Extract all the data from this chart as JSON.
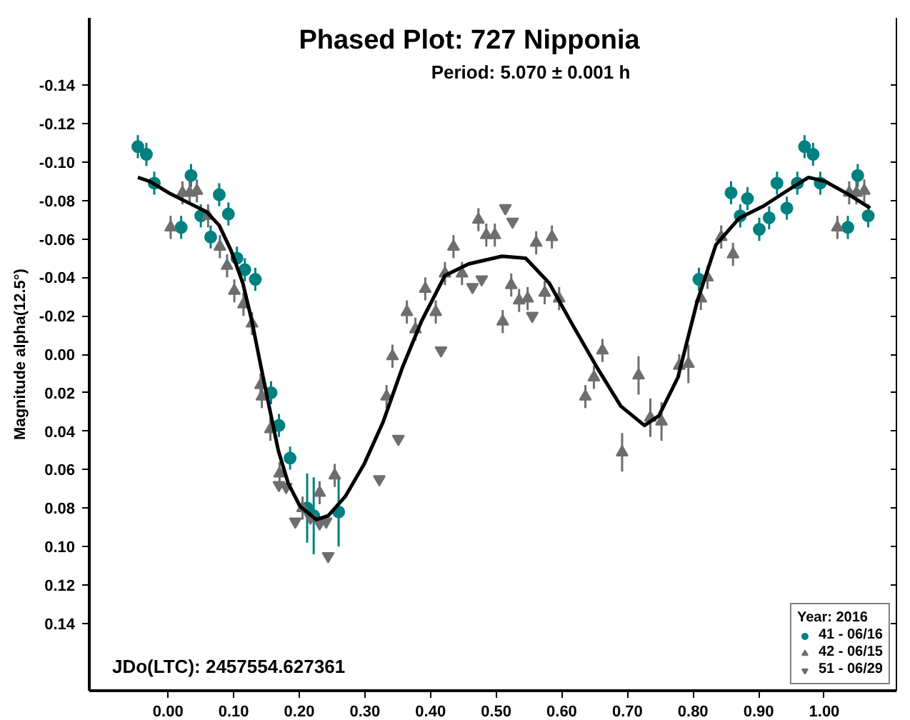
{
  "chart_data": {
    "type": "scatter",
    "title": "Phased Plot: 727 Nipponia",
    "xlabel": null,
    "ylabel": "Magnitude alpha(12.5°)",
    "legend_title": "Year: 2016",
    "annotations": [
      "Period: 5.070 ± 0.001 h",
      "JDo(LTC): 2457554.627361"
    ],
    "xlim": [
      -0.12,
      1.11
    ],
    "ylim": [
      0.175,
      -0.175
    ],
    "xticks": [
      {
        "value": 0,
        "label": "0.00"
      },
      {
        "value": 0.1,
        "label": "0.10"
      },
      {
        "value": 0.2,
        "label": "0.20"
      },
      {
        "value": 0.3,
        "label": "0.30"
      },
      {
        "value": 0.4,
        "label": "0.40"
      },
      {
        "value": 0.5,
        "label": "0.50"
      },
      {
        "value": 0.6,
        "label": "0.60"
      },
      {
        "value": 0.7,
        "label": "0.70"
      },
      {
        "value": 0.8,
        "label": "0.80"
      },
      {
        "value": 0.9,
        "label": "0.90"
      },
      {
        "value": 1.0,
        "label": "1.00"
      }
    ],
    "yticks": [
      {
        "value": -0.14,
        "label": "-0.14"
      },
      {
        "value": -0.12,
        "label": "-0.12"
      },
      {
        "value": -0.1,
        "label": "-0.10"
      },
      {
        "value": -0.08,
        "label": "-0.08"
      },
      {
        "value": -0.06,
        "label": "-0.06"
      },
      {
        "value": -0.04,
        "label": "-0.04"
      },
      {
        "value": -0.02,
        "label": "-0.02"
      },
      {
        "value": 0,
        "label": "0.00"
      },
      {
        "value": 0.02,
        "label": "0.02"
      },
      {
        "value": 0.04,
        "label": "0.04"
      },
      {
        "value": 0.06,
        "label": "0.06"
      },
      {
        "value": 0.08,
        "label": "0.08"
      },
      {
        "value": 0.1,
        "label": "0.10"
      },
      {
        "value": 0.12,
        "label": "0.12"
      },
      {
        "value": 0.14,
        "label": "0.14"
      }
    ],
    "grid": false,
    "legend": "bottom right",
    "series": [
      {
        "name": "41 - 06/16",
        "marker": "circle",
        "color": "#008080",
        "x": [
          -0.046,
          -0.033,
          -0.021,
          0.035,
          0.02,
          0.05,
          0.065,
          0.078,
          0.092,
          0.105,
          0.117,
          0.133,
          0.157,
          0.169,
          0.186,
          0.212,
          0.222,
          0.26,
          0.809,
          0.858,
          0.872,
          0.883,
          0.901,
          0.916,
          0.928,
          0.943,
          0.959,
          0.97,
          0.983,
          0.994,
          1.036,
          1.051,
          1.067
        ],
        "values": [
          -0.108,
          -0.104,
          -0.089,
          -0.093,
          -0.066,
          -0.072,
          -0.061,
          -0.083,
          -0.073,
          -0.05,
          -0.044,
          -0.039,
          0.02,
          0.037,
          0.054,
          0.08,
          0.084,
          0.082,
          -0.039,
          -0.084,
          -0.072,
          -0.081,
          -0.065,
          -0.071,
          -0.089,
          -0.076,
          -0.089,
          -0.108,
          -0.104,
          -0.089,
          -0.066,
          -0.093,
          -0.072
        ],
        "errors": [
          0.006,
          0.006,
          0.006,
          0.006,
          0.006,
          0.006,
          0.006,
          0.006,
          0.006,
          0.006,
          0.006,
          0.006,
          0.006,
          0.006,
          0.006,
          0.018,
          0.02,
          0.018,
          0.006,
          0.006,
          0.006,
          0.006,
          0.006,
          0.006,
          0.006,
          0.006,
          0.006,
          0.006,
          0.006,
          0.006,
          0.006,
          0.006,
          0.006
        ]
      },
      {
        "name": "42 - 06/15",
        "marker": "triangle",
        "color": "#6e6e6e",
        "x": [
          0.004,
          0.022,
          0.033,
          0.044,
          0.061,
          0.079,
          0.09,
          0.101,
          0.115,
          0.128,
          0.141,
          0.143,
          0.156,
          0.17,
          0.205,
          0.231,
          0.254,
          0.333,
          0.342,
          0.364,
          0.377,
          0.392,
          0.408,
          0.422,
          0.435,
          0.448,
          0.473,
          0.485,
          0.498,
          0.51,
          0.523,
          0.535,
          0.548,
          0.561,
          0.574,
          0.585,
          0.596,
          0.636,
          0.649,
          0.662,
          0.692,
          0.717,
          0.735,
          0.752,
          0.779,
          0.793,
          0.812,
          0.822,
          0.843,
          0.861,
          1.02,
          1.038,
          1.049,
          1.061
        ],
        "values": [
          -0.066,
          -0.084,
          -0.084,
          -0.085,
          -0.072,
          -0.056,
          -0.046,
          -0.033,
          -0.026,
          -0.016,
          0.016,
          0.022,
          0.039,
          0.062,
          0.08,
          0.072,
          0.063,
          0.022,
          0.001,
          -0.022,
          -0.013,
          -0.034,
          -0.022,
          -0.042,
          -0.056,
          -0.042,
          -0.07,
          -0.062,
          -0.062,
          -0.017,
          -0.036,
          -0.028,
          -0.029,
          -0.058,
          -0.032,
          -0.061,
          -0.029,
          0.022,
          0.012,
          -0.002,
          0.051,
          0.011,
          0.033,
          0.035,
          0.006,
          0.005,
          -0.029,
          -0.04,
          -0.061,
          -0.052,
          -0.066,
          -0.084,
          -0.084,
          -0.085
        ],
        "errors": [
          0.006,
          0.006,
          0.006,
          0.006,
          0.006,
          0.006,
          0.006,
          0.006,
          0.006,
          0.006,
          0.006,
          0.006,
          0.006,
          0.006,
          0.006,
          0.006,
          0.006,
          0.006,
          0.006,
          0.006,
          0.006,
          0.006,
          0.006,
          0.006,
          0.006,
          0.006,
          0.006,
          0.006,
          0.006,
          0.006,
          0.006,
          0.006,
          0.006,
          0.006,
          0.006,
          0.006,
          0.006,
          0.006,
          0.006,
          0.006,
          0.01,
          0.01,
          0.01,
          0.01,
          0.006,
          0.01,
          0.006,
          0.006,
          0.006,
          0.006,
          0.006,
          0.006,
          0.006,
          0.006
        ]
      },
      {
        "name": "51 - 06/29",
        "marker": "triangle_down",
        "color": "#6e6e6e",
        "x": [
          0.169,
          0.18,
          0.194,
          0.217,
          0.231,
          0.241,
          0.244,
          0.322,
          0.351,
          0.416,
          0.464,
          0.478,
          0.514,
          0.525,
          0.555
        ],
        "values": [
          0.068,
          0.069,
          0.087,
          0.085,
          0.088,
          0.087,
          0.105,
          0.065,
          0.044,
          -0.002,
          -0.035,
          -0.039,
          -0.076,
          -0.069,
          -0.02
        ]
      },
      {
        "type": "line",
        "marker": "none",
        "color": "#000000",
        "x": [
          -0.046,
          -0.028,
          0.001,
          0.03,
          0.059,
          0.078,
          0.096,
          0.114,
          0.128,
          0.139,
          0.154,
          0.168,
          0.183,
          0.201,
          0.226,
          0.244,
          0.27,
          0.299,
          0.328,
          0.357,
          0.386,
          0.422,
          0.458,
          0.509,
          0.545,
          0.581,
          0.617,
          0.654,
          0.69,
          0.726,
          0.748,
          0.777,
          0.806,
          0.835,
          0.871,
          0.907,
          0.943,
          0.976,
          1.001,
          1.038,
          1.07
        ],
        "values": [
          -0.092,
          -0.09,
          -0.084,
          -0.079,
          -0.074,
          -0.067,
          -0.054,
          -0.037,
          -0.017,
          0.002,
          0.027,
          0.05,
          0.067,
          0.079,
          0.086,
          0.084,
          0.074,
          0.057,
          0.035,
          0.007,
          -0.017,
          -0.041,
          -0.047,
          -0.051,
          -0.05,
          -0.037,
          -0.015,
          0.007,
          0.027,
          0.037,
          0.032,
          0.012,
          -0.027,
          -0.057,
          -0.071,
          -0.077,
          -0.085,
          -0.092,
          -0.09,
          -0.083,
          -0.076
        ]
      }
    ]
  }
}
